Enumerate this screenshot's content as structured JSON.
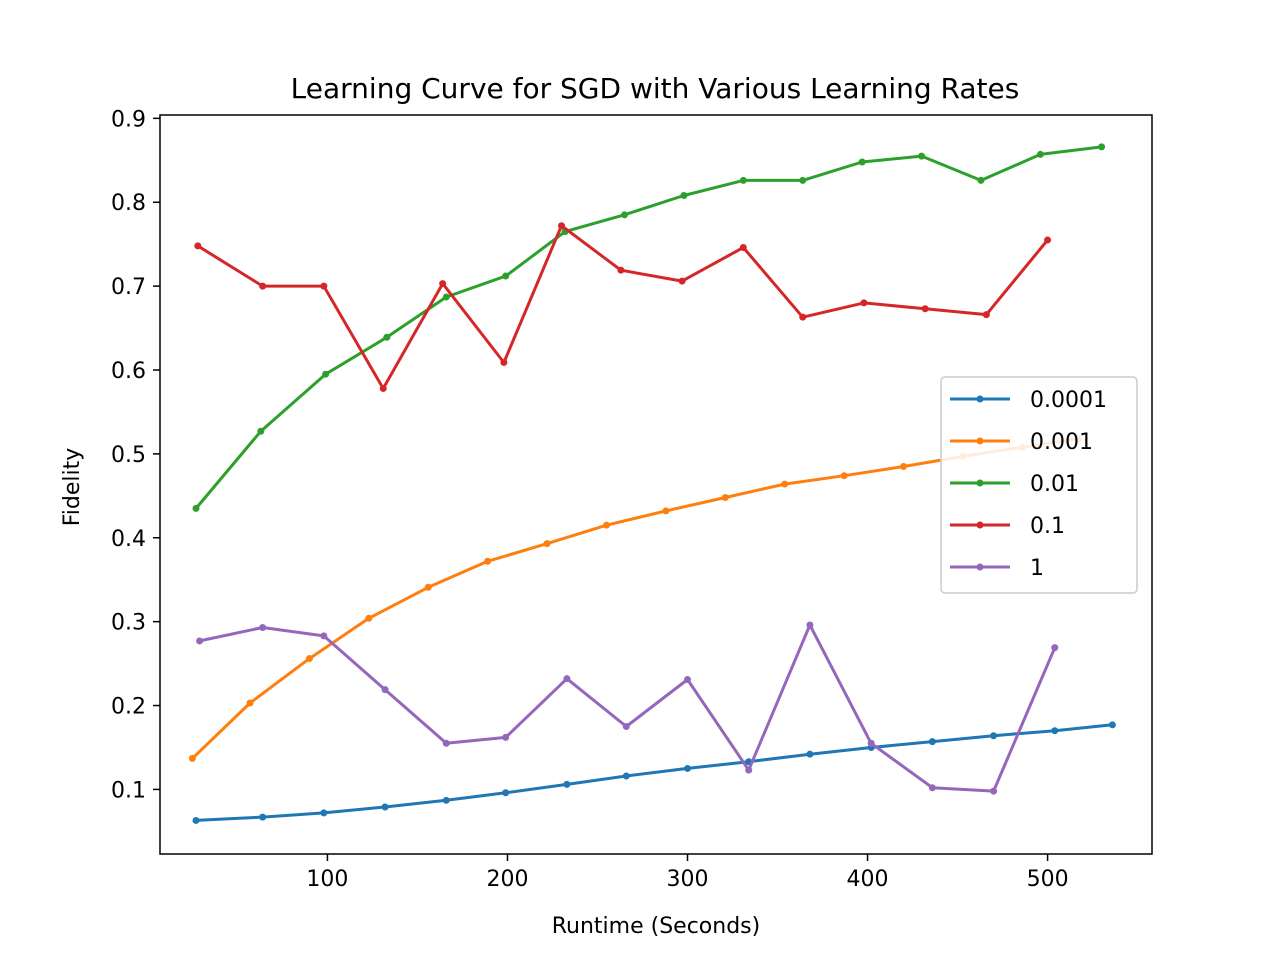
{
  "chart_data": {
    "type": "line",
    "title": "Learning Curve for SGD with Various Learning Rates",
    "xlabel": "Runtime (Seconds)",
    "ylabel": "Fidelity",
    "xlim": [
      7,
      558
    ],
    "ylim": [
      0.023,
      0.904
    ],
    "xticks": [
      100,
      200,
      300,
      400,
      500
    ],
    "yticks": [
      0.1,
      0.2,
      0.3,
      0.4,
      0.5,
      0.6,
      0.7,
      0.8,
      0.9
    ],
    "grid": false,
    "legend_position": "center-right",
    "series": [
      {
        "name": "0.0001",
        "color": "#1f77b4",
        "x": [
          27,
          64,
          98,
          132,
          166,
          199,
          233,
          266,
          300,
          334,
          368,
          402,
          436,
          470,
          504,
          536
        ],
        "y": [
          0.063,
          0.067,
          0.072,
          0.079,
          0.087,
          0.096,
          0.106,
          0.116,
          0.125,
          0.133,
          0.142,
          0.15,
          0.157,
          0.164,
          0.17,
          0.177
        ]
      },
      {
        "name": "0.001",
        "color": "#ff7f0e",
        "x": [
          25,
          57,
          90,
          123,
          156,
          189,
          222,
          255,
          288,
          321,
          354,
          387,
          420,
          453,
          486,
          517
        ],
        "y": [
          0.137,
          0.203,
          0.256,
          0.304,
          0.341,
          0.372,
          0.393,
          0.415,
          0.432,
          0.448,
          0.464,
          0.474,
          0.485,
          0.497,
          0.508,
          0.518
        ]
      },
      {
        "name": "0.01",
        "color": "#2ca02c",
        "x": [
          27,
          63,
          99,
          133,
          166,
          199,
          232,
          265,
          298,
          331,
          364,
          397,
          430,
          463,
          496,
          530
        ],
        "y": [
          0.435,
          0.527,
          0.595,
          0.639,
          0.687,
          0.712,
          0.765,
          0.785,
          0.808,
          0.826,
          0.826,
          0.848,
          0.855,
          0.826,
          0.857,
          0.866
        ]
      },
      {
        "name": "0.1",
        "color": "#d62728",
        "x": [
          28,
          64,
          98,
          131,
          164,
          198,
          230,
          263,
          297,
          331,
          364,
          398,
          432,
          466,
          500
        ],
        "y": [
          0.748,
          0.7,
          0.7,
          0.578,
          0.703,
          0.609,
          0.772,
          0.719,
          0.706,
          0.746,
          0.663,
          0.68,
          0.673,
          0.666,
          0.755
        ]
      },
      {
        "name": "1",
        "color": "#9467bd",
        "x": [
          29,
          64,
          98,
          132,
          166,
          199,
          233,
          266,
          300,
          334,
          368,
          402,
          436,
          470,
          504
        ],
        "y": [
          0.277,
          0.293,
          0.283,
          0.219,
          0.155,
          0.162,
          0.232,
          0.175,
          0.231,
          0.123,
          0.296,
          0.155,
          0.102,
          0.098,
          0.269
        ]
      }
    ]
  }
}
